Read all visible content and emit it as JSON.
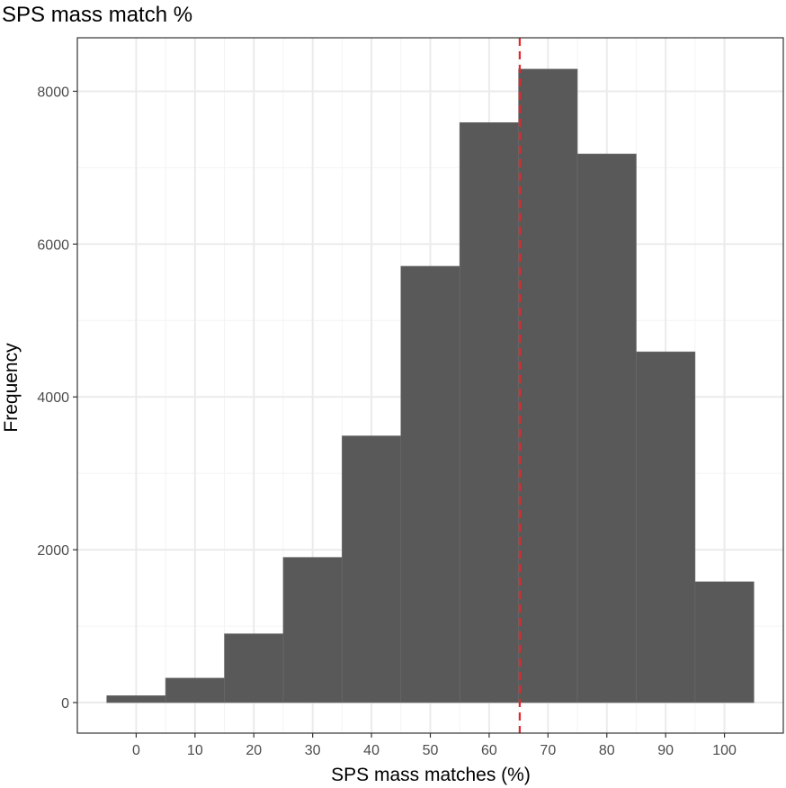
{
  "chart_data": {
    "type": "bar",
    "title": "SPS mass match %",
    "xlabel": "SPS mass matches (%)",
    "ylabel": "Frequency",
    "x_ticks": [
      0,
      10,
      20,
      30,
      40,
      50,
      60,
      70,
      80,
      90,
      100
    ],
    "y_ticks": [
      0,
      2000,
      4000,
      6000,
      8000
    ],
    "xlim": [
      -10,
      110
    ],
    "ylim": [
      -400,
      8700
    ],
    "bin_width": 10,
    "bins": [
      {
        "center": 0,
        "count": 90
      },
      {
        "center": 10,
        "count": 320
      },
      {
        "center": 20,
        "count": 900
      },
      {
        "center": 30,
        "count": 1900
      },
      {
        "center": 40,
        "count": 3490
      },
      {
        "center": 50,
        "count": 5710
      },
      {
        "center": 60,
        "count": 7590
      },
      {
        "center": 70,
        "count": 8290
      },
      {
        "center": 80,
        "count": 7180
      },
      {
        "center": 90,
        "count": 4590
      },
      {
        "center": 100,
        "count": 1580
      }
    ],
    "reference_line": {
      "x": 65.2,
      "style": "dashed"
    },
    "grid": true,
    "colors": {
      "bar": "#595959",
      "bar_border": "#6a6a6a",
      "reference_line": "#e8262a",
      "grid_major": "#ebebeb",
      "grid_minor": "#f4f4f4",
      "panel_border": "#333333"
    }
  }
}
